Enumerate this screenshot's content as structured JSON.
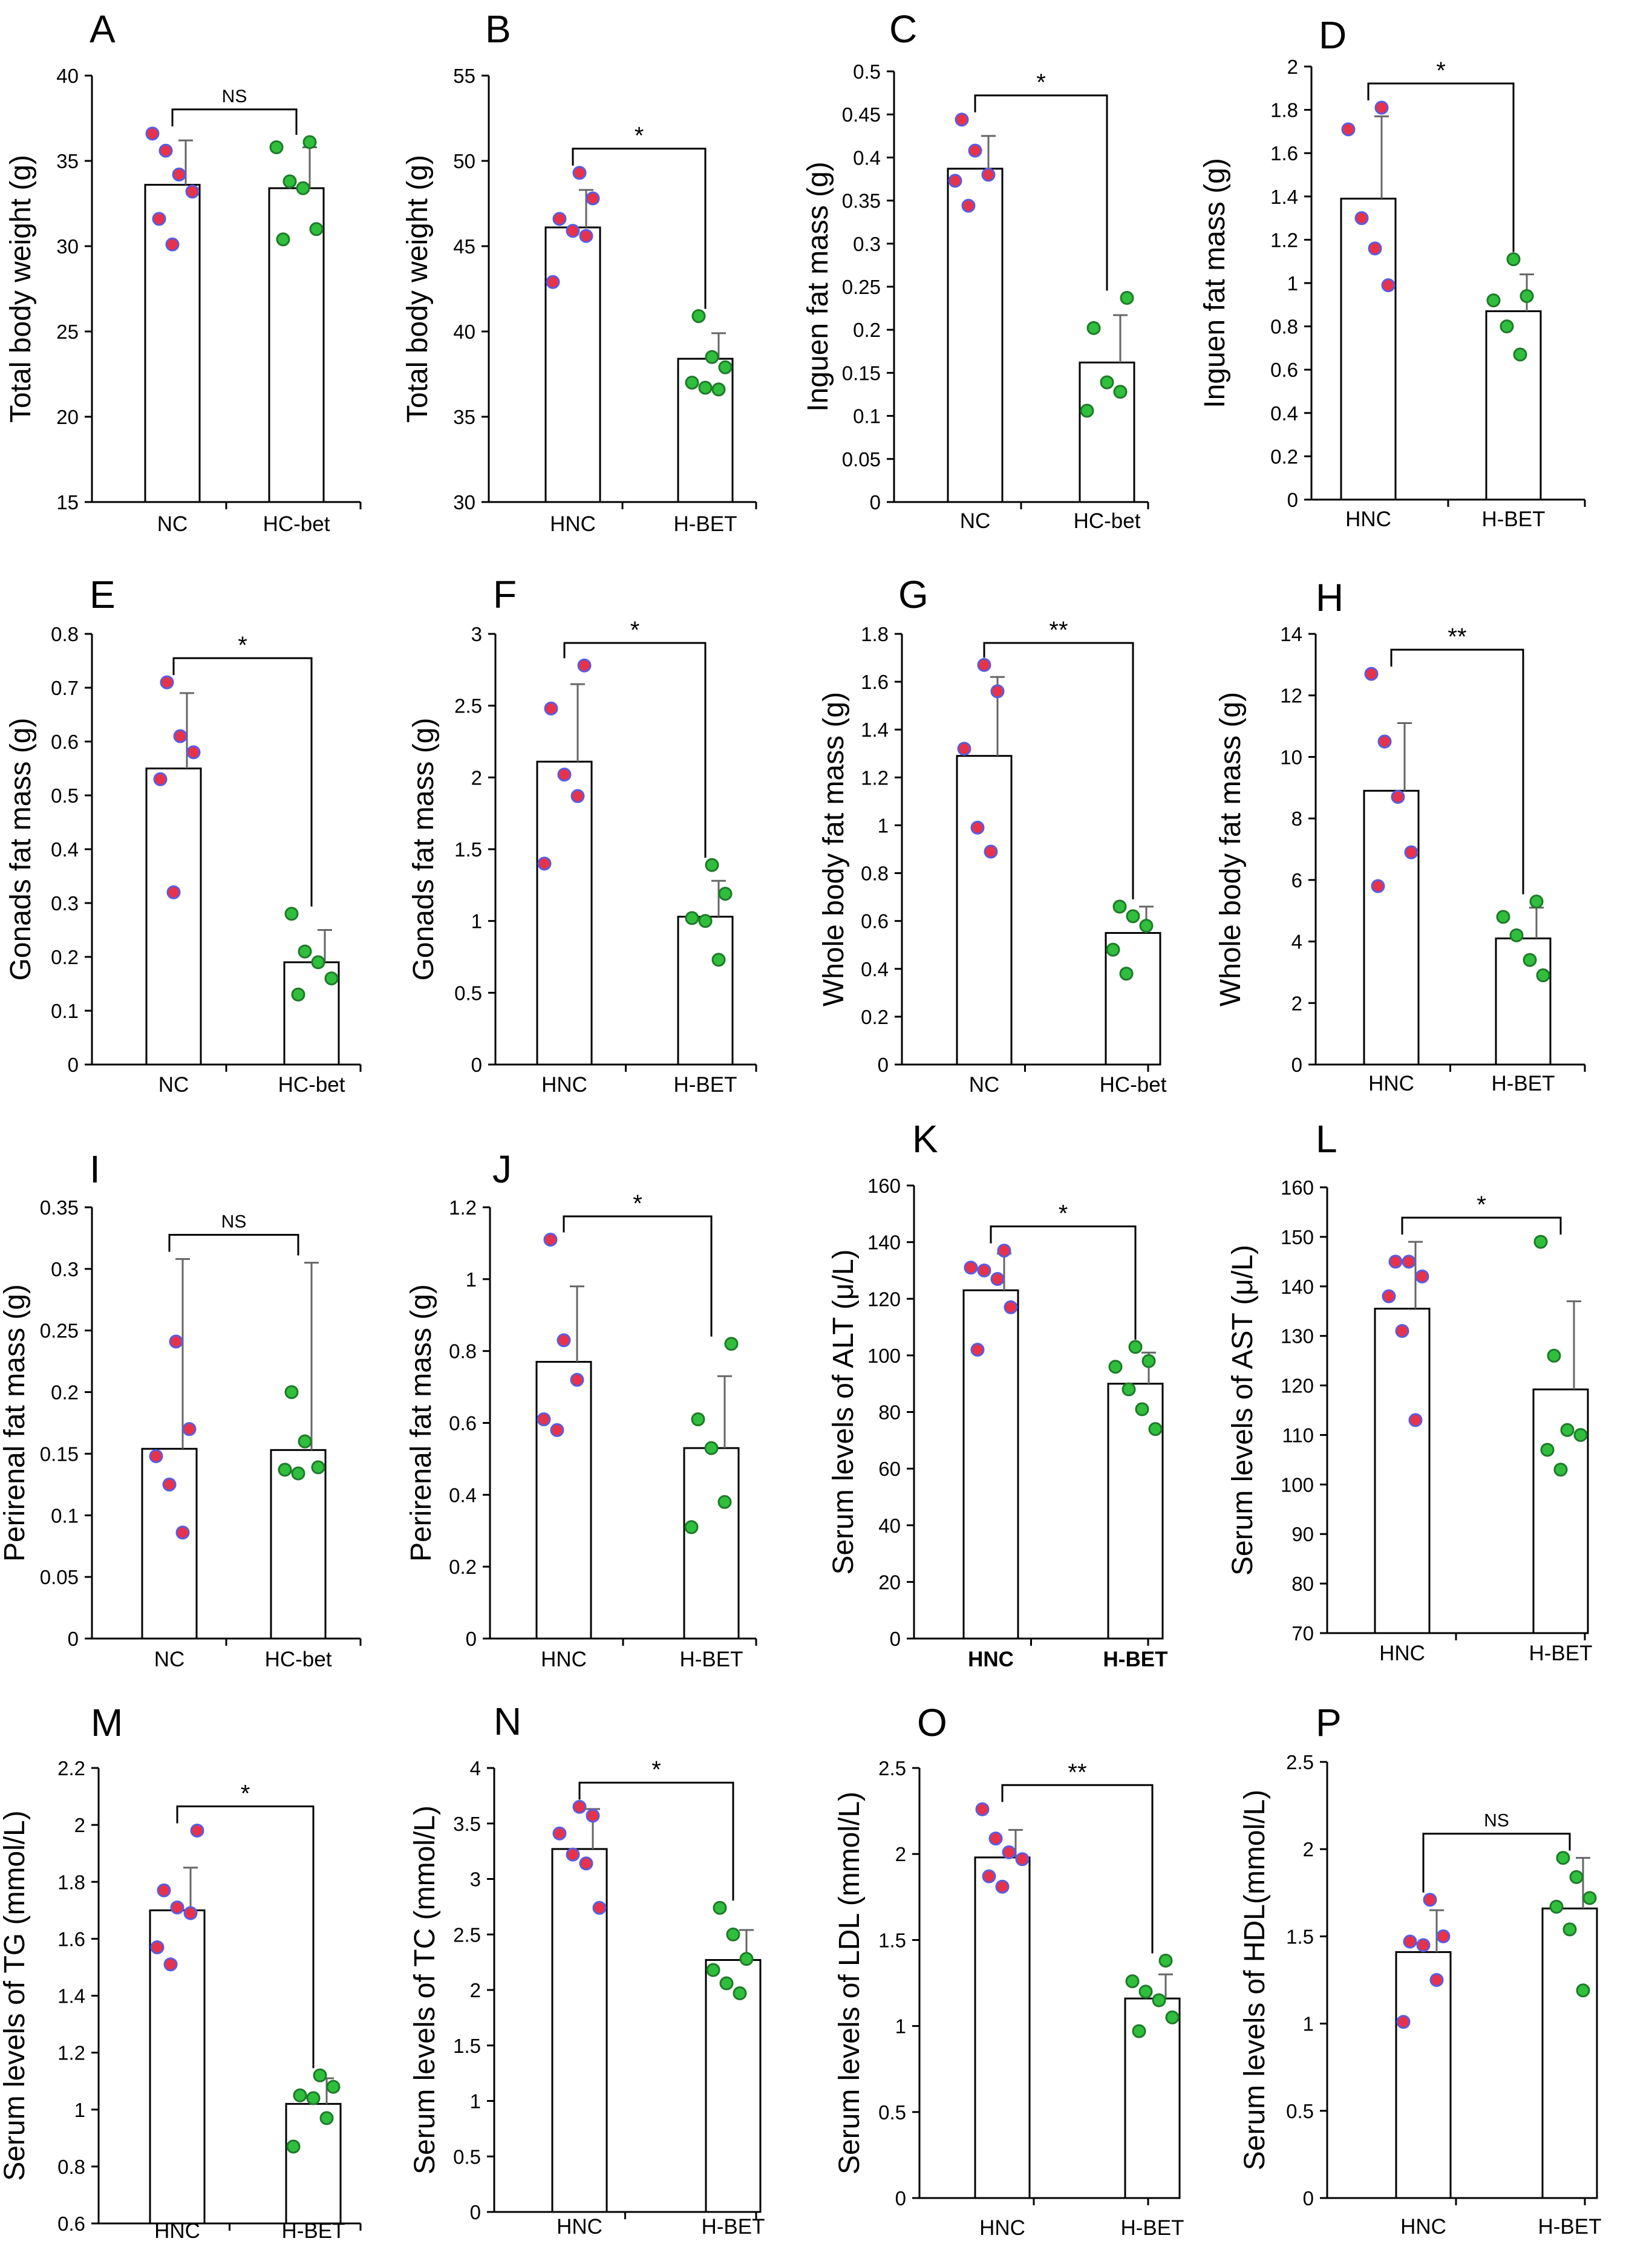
{
  "figure": {
    "colors": {
      "group1_dot": "#e8324a",
      "group1_edge": "#5b5be0",
      "group2_dot": "#2fbf3c",
      "group2_edge": "#1e7a2a",
      "bar_fill": "#ffffff",
      "axis": "#000000"
    }
  },
  "chart_data": [
    {
      "letter": "A",
      "type": "bar",
      "ylabel": "Total body weight (g)",
      "ylim": [
        15,
        40
      ],
      "yticks": [
        "15",
        "20",
        "25",
        "30",
        "35",
        "40"
      ],
      "categories": [
        "NC",
        "HC-bet"
      ],
      "values": [
        33.6,
        33.4
      ],
      "errors": [
        2.6,
        2.4
      ],
      "points": [
        [
          36.6,
          35.6,
          34.2,
          33.2,
          31.6,
          30.1
        ],
        [
          36.1,
          35.8,
          33.8,
          33.4,
          31.0,
          30.4
        ]
      ],
      "significance": "NS"
    },
    {
      "letter": "B",
      "type": "bar",
      "ylabel": "Total body weight (g)",
      "ylim": [
        30,
        55
      ],
      "yticks": [
        "30",
        "35",
        "40",
        "45",
        "50",
        "55"
      ],
      "categories": [
        "HNC",
        "H-BET"
      ],
      "values": [
        46.1,
        38.4
      ],
      "errors": [
        2.2,
        1.5
      ],
      "points": [
        [
          49.3,
          47.8,
          46.6,
          45.9,
          45.6,
          42.9
        ],
        [
          40.9,
          38.5,
          37.9,
          37.0,
          36.7,
          36.6
        ]
      ],
      "significance": "*"
    },
    {
      "letter": "C",
      "type": "bar",
      "ylabel": "Inguen fat mass (g)",
      "ylim": [
        0,
        0.5
      ],
      "yticks": [
        "0",
        "0.05",
        "0.1",
        "0.15",
        "0.2",
        "0.25",
        "0.3",
        "0.35",
        "0.4",
        "0.45",
        "0.5"
      ],
      "categories": [
        "NC",
        "HC-bet"
      ],
      "values": [
        0.387,
        0.162
      ],
      "errors": [
        0.038,
        0.055
      ],
      "points": [
        [
          0.444,
          0.408,
          0.38,
          0.373,
          0.344
        ],
        [
          0.237,
          0.202,
          0.139,
          0.128,
          0.106
        ]
      ],
      "significance": "*"
    },
    {
      "letter": "D",
      "type": "bar",
      "ylabel": "Inguen fat mass (g)",
      "ylim": [
        0,
        2
      ],
      "yticks": [
        "0",
        "0.2",
        "0.4",
        "0.6",
        "0.8",
        "1",
        "1.2",
        "1.4",
        "1.6",
        "1.8",
        "2"
      ],
      "categories": [
        "HNC",
        "H-BET"
      ],
      "values": [
        1.39,
        0.87
      ],
      "errors": [
        0.38,
        0.17
      ],
      "points": [
        [
          1.81,
          1.71,
          1.3,
          1.16,
          0.99
        ],
        [
          1.11,
          0.94,
          0.92,
          0.8,
          0.67
        ]
      ],
      "significance": "*"
    },
    {
      "letter": "E",
      "type": "bar",
      "ylabel": "Gonads  fat mass (g)",
      "ylim": [
        0,
        0.8
      ],
      "yticks": [
        "0",
        "0.1",
        "0.2",
        "0.3",
        "0.4",
        "0.5",
        "0.6",
        "0.7",
        "0.8"
      ],
      "categories": [
        "NC",
        "HC-bet"
      ],
      "values": [
        0.55,
        0.19
      ],
      "errors": [
        0.14,
        0.06
      ],
      "points": [
        [
          0.71,
          0.61,
          0.58,
          0.53,
          0.32
        ],
        [
          0.28,
          0.21,
          0.19,
          0.16,
          0.13
        ]
      ],
      "significance": "*"
    },
    {
      "letter": "F",
      "type": "bar",
      "ylabel": "Gonads  fat mass (g)",
      "ylim": [
        0,
        3
      ],
      "yticks": [
        "0",
        "0.5",
        "1",
        "1.5",
        "2",
        "2.5",
        "3"
      ],
      "categories": [
        "HNC",
        "H-BET"
      ],
      "values": [
        2.11,
        1.03
      ],
      "errors": [
        0.54,
        0.25
      ],
      "points": [
        [
          2.78,
          2.48,
          2.02,
          1.87,
          1.4
        ],
        [
          1.39,
          1.19,
          1.02,
          1.0,
          0.73
        ]
      ],
      "significance": "*"
    },
    {
      "letter": "G",
      "type": "bar",
      "ylabel": "Whole body fat mass (g)",
      "ylim": [
        0,
        1.8
      ],
      "yticks": [
        "0",
        "0.2",
        "0.4",
        "0.6",
        "0.8",
        "1",
        "1.2",
        "1.4",
        "1.6",
        "1.8"
      ],
      "categories": [
        "NC",
        "HC-bet"
      ],
      "values": [
        1.29,
        0.55
      ],
      "errors": [
        0.33,
        0.11
      ],
      "points": [
        [
          1.67,
          1.56,
          1.32,
          0.99,
          0.89
        ],
        [
          0.66,
          0.62,
          0.58,
          0.48,
          0.38
        ]
      ],
      "significance": "**"
    },
    {
      "letter": "H",
      "type": "bar",
      "ylabel": "Whole body fat mass (g)",
      "ylim": [
        0,
        14
      ],
      "yticks": [
        "0",
        "2",
        "4",
        "6",
        "8",
        "10",
        "12",
        "14"
      ],
      "categories": [
        "HNC",
        "H-BET"
      ],
      "values": [
        8.9,
        4.1
      ],
      "errors": [
        2.2,
        1.0
      ],
      "points": [
        [
          12.7,
          10.5,
          8.7,
          6.9,
          5.8
        ],
        [
          5.3,
          4.8,
          4.2,
          3.4,
          2.9
        ]
      ],
      "significance": "**"
    },
    {
      "letter": "I",
      "type": "bar",
      "ylabel": "Perirenal fat mass (g)",
      "ylim": [
        0,
        0.35
      ],
      "yticks": [
        "0",
        "0.05",
        "0.1",
        "0.15",
        "0.2",
        "0.25",
        "0.3",
        "0.35"
      ],
      "categories": [
        "NC",
        "HC-bet"
      ],
      "values": [
        0.154,
        0.153
      ],
      "errors": [
        0.154,
        0.152
      ],
      "points": [
        [
          0.241,
          0.17,
          0.148,
          0.125,
          0.086
        ],
        [
          0.2,
          0.16,
          0.139,
          0.137,
          0.134
        ]
      ],
      "significance": "NS"
    },
    {
      "letter": "J",
      "type": "bar",
      "ylabel": "Perirenal fat mass (g)",
      "ylim": [
        0,
        1.2
      ],
      "yticks": [
        "0",
        "0.2",
        "0.4",
        "0.6",
        "0.8",
        "1",
        "1.2"
      ],
      "categories": [
        "HNC",
        "H-BET"
      ],
      "values": [
        0.77,
        0.53
      ],
      "errors": [
        0.21,
        0.2
      ],
      "points": [
        [
          1.11,
          0.83,
          0.72,
          0.61,
          0.58
        ],
        [
          0.82,
          0.61,
          0.53,
          0.38,
          0.31
        ]
      ],
      "significance": "*"
    },
    {
      "letter": "K",
      "type": "bar",
      "ylabel": "Serum levels of ALT (μ/L)",
      "ylim": [
        0,
        160
      ],
      "yticks": [
        "0",
        "20",
        "40",
        "60",
        "80",
        "100",
        "120",
        "140",
        "160"
      ],
      "categories": [
        "HNC",
        "H-BET"
      ],
      "category_bold": true,
      "values": [
        123,
        90
      ],
      "errors": [
        13,
        11
      ],
      "points": [
        [
          137,
          131,
          130,
          127,
          117,
          102
        ],
        [
          103,
          98,
          96,
          88,
          81,
          74
        ]
      ],
      "significance": "*"
    },
    {
      "letter": "L",
      "type": "bar",
      "ylabel": "Serum levels of AST (μ/L)",
      "ylim": [
        70,
        160
      ],
      "yticks": [
        "70",
        "80",
        "90",
        "100",
        "110",
        "120",
        "130",
        "140",
        "150",
        "160"
      ],
      "categories": [
        "HNC",
        "H-BET"
      ],
      "values": [
        135.5,
        119.2
      ],
      "errors": [
        13.5,
        17.8
      ],
      "points": [
        [
          145,
          145,
          142,
          138,
          131,
          113
        ],
        [
          149,
          126,
          111,
          110,
          107,
          103
        ]
      ],
      "significance": "*"
    },
    {
      "letter": "M",
      "type": "bar",
      "ylabel": "Serum levels of TG (mmol/L)",
      "ylim": [
        0.6,
        2.2
      ],
      "yticks": [
        "0.6",
        "0.8",
        "1",
        "1.2",
        "1.4",
        "1.6",
        "1.8",
        "2",
        "2.2"
      ],
      "categories": [
        "HNC",
        "H-BET"
      ],
      "values": [
        1.7,
        1.02
      ],
      "errors": [
        0.15,
        0.09
      ],
      "points": [
        [
          1.98,
          1.77,
          1.71,
          1.69,
          1.57,
          1.51
        ],
        [
          1.12,
          1.08,
          1.05,
          1.04,
          0.97,
          0.87
        ]
      ],
      "significance": "*"
    },
    {
      "letter": "N",
      "type": "bar",
      "ylabel": "Serum levels of TC (mmol/L)",
      "ylim": [
        0,
        4
      ],
      "yticks": [
        "0",
        "0.5",
        "1",
        "1.5",
        "2",
        "2.5",
        "3",
        "3.5",
        "4"
      ],
      "categories": [
        "HNC",
        "H-BET"
      ],
      "values": [
        3.27,
        2.27
      ],
      "errors": [
        0.36,
        0.27
      ],
      "points": [
        [
          3.65,
          3.57,
          3.41,
          3.22,
          3.14,
          2.74
        ],
        [
          2.74,
          2.5,
          2.28,
          2.18,
          2.06,
          1.97
        ]
      ],
      "significance": "*"
    },
    {
      "letter": "O",
      "type": "bar",
      "ylabel": "Serum levels of LDL (mmol/L)",
      "ylim": [
        0,
        2.5
      ],
      "yticks": [
        "0",
        "0.5",
        "1",
        "1.5",
        "2",
        "2.5"
      ],
      "categories": [
        "HNC",
        "H-BET"
      ],
      "values": [
        1.98,
        1.16
      ],
      "errors": [
        0.16,
        0.14
      ],
      "points": [
        [
          2.26,
          2.09,
          2.01,
          1.97,
          1.87,
          1.81
        ],
        [
          1.38,
          1.26,
          1.2,
          1.15,
          1.05,
          0.97
        ]
      ],
      "significance": "**"
    },
    {
      "letter": "P",
      "type": "bar",
      "ylabel": "Serum levels of HDL(mmol/L)",
      "ylim": [
        0,
        2.5
      ],
      "yticks": [
        "0",
        "0.5",
        "1",
        "1.5",
        "2",
        "2.5"
      ],
      "categories": [
        "HNC",
        "H-BET"
      ],
      "values": [
        1.41,
        1.66
      ],
      "errors": [
        0.24,
        0.29
      ],
      "points": [
        [
          1.71,
          1.5,
          1.47,
          1.45,
          1.25,
          1.01
        ],
        [
          1.95,
          1.84,
          1.72,
          1.67,
          1.54,
          1.19
        ]
      ],
      "significance": "NS"
    }
  ]
}
